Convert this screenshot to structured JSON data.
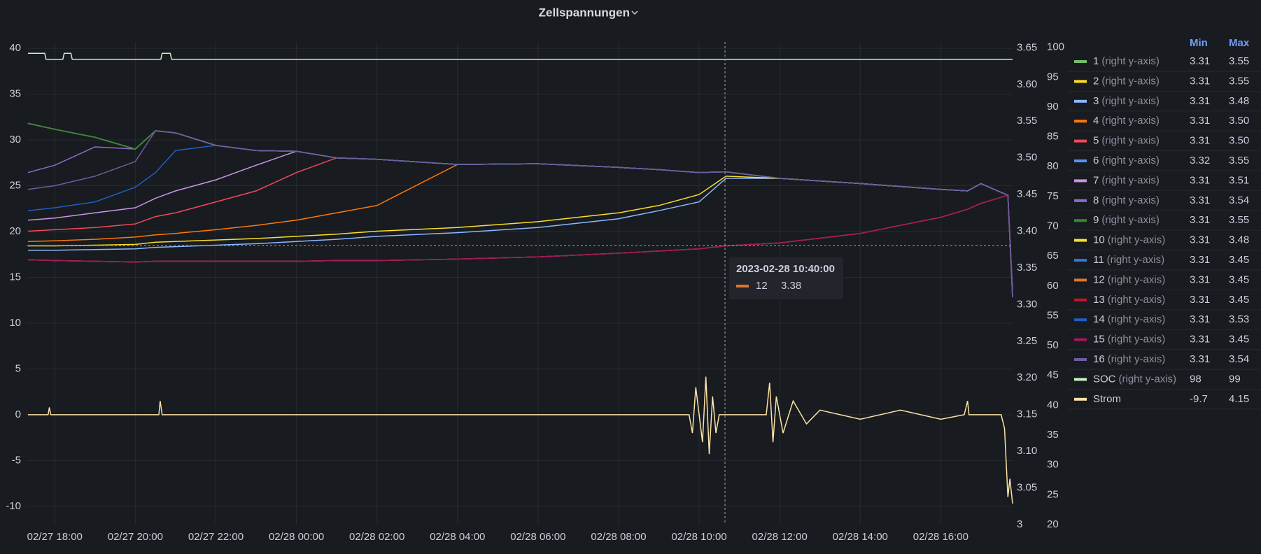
{
  "chart_data": {
    "type": "line",
    "title": "Zellspannungen",
    "right_axis_note": "(right y-axis)",
    "legend_columns": [
      "Min",
      "Max"
    ],
    "x": [
      "02/27 17:20",
      "02/27 18:00",
      "02/27 19:00",
      "02/27 20:00",
      "02/27 20:30",
      "02/27 21:00",
      "02/27 22:00",
      "02/27 23:00",
      "02/28 00:00",
      "02/28 01:00",
      "02/28 02:00",
      "02/28 04:00",
      "02/28 06:00",
      "02/28 08:00",
      "02/28 09:00",
      "02/28 10:00",
      "02/28 10:40",
      "02/28 12:00",
      "02/28 14:00",
      "02/28 16:00",
      "02/28 16:40",
      "02/28 17:00",
      "02/28 17:40",
      "02/28 17:47"
    ],
    "xlim": [
      "02/27 17:18",
      "02/28 17:47"
    ],
    "xticks": [
      "02/27 18:00",
      "02/27 20:00",
      "02/27 22:00",
      "02/28 00:00",
      "02/28 02:00",
      "02/28 04:00",
      "02/28 06:00",
      "02/28 08:00",
      "02/28 10:00",
      "02/28 12:00",
      "02/28 14:00",
      "02/28 16:00"
    ],
    "ylim": [
      -12,
      40.7
    ],
    "yticks": [
      40,
      35,
      30,
      25,
      20,
      15,
      10,
      5,
      0,
      -5,
      -10
    ],
    "y2lim": [
      3,
      3.658
    ],
    "y2ticks": [
      {
        "value": 3.65,
        "label": "3.65"
      },
      {
        "value": 3.6,
        "label": "3.60"
      },
      3.55,
      {
        "value": 3.5,
        "label": "3.50"
      },
      3.45,
      {
        "value": 3.4,
        "label": "3.40"
      },
      3.35,
      {
        "value": 3.3,
        "label": "3.30"
      },
      3.25,
      {
        "value": 3.2,
        "label": "3.20"
      },
      3.15,
      {
        "value": 3.1,
        "label": "3.10"
      },
      3.05,
      3
    ],
    "y3lim": [
      20,
      100.9
    ],
    "y3ticks": [
      100,
      95,
      90,
      85,
      80,
      75,
      70,
      65,
      60,
      55,
      50,
      45,
      40,
      35,
      30,
      25,
      20
    ],
    "grid": true,
    "series": [
      {
        "name": "1",
        "color": "#73bf69",
        "axis": "y2",
        "min": "3.31",
        "max": "3.55",
        "values": [
          3.547,
          3.539,
          3.528,
          3.512,
          3.537,
          3.534,
          3.517,
          3.51,
          3.509,
          3.5,
          3.498,
          3.491,
          3.492,
          3.487,
          3.484,
          3.48,
          3.481,
          3.472,
          3.465,
          3.457,
          3.455,
          3.465,
          3.449,
          3.31
        ]
      },
      {
        "name": "2",
        "color": "#fade2a",
        "axis": "y2",
        "min": "3.31",
        "max": "3.55",
        "values": [
          3.547,
          3.539,
          3.528,
          3.512,
          3.537,
          3.534,
          3.517,
          3.51,
          3.509,
          3.5,
          3.498,
          3.491,
          3.492,
          3.487,
          3.484,
          3.48,
          3.481,
          3.472,
          3.465,
          3.457,
          3.455,
          3.465,
          3.449,
          3.31
        ]
      },
      {
        "name": "3",
        "color": "#8ab8ff",
        "axis": "y2",
        "min": "3.31",
        "max": "3.48",
        "values": [
          3.374,
          3.374,
          3.375,
          3.376,
          3.378,
          3.379,
          3.381,
          3.383,
          3.386,
          3.389,
          3.393,
          3.398,
          3.405,
          3.417,
          3.428,
          3.44,
          3.472,
          3.472,
          3.465,
          3.457,
          3.455,
          3.465,
          3.449,
          3.31
        ]
      },
      {
        "name": "4",
        "color": "#ff780a",
        "axis": "y2",
        "min": "3.31",
        "max": "3.50",
        "values": [
          3.386,
          3.387,
          3.389,
          3.392,
          3.395,
          3.397,
          3.402,
          3.408,
          3.415,
          3.425,
          3.435,
          3.491,
          3.492,
          3.487,
          3.484,
          3.48,
          3.481,
          3.472,
          3.465,
          3.457,
          3.455,
          3.465,
          3.449,
          3.31
        ]
      },
      {
        "name": "5",
        "color": "#f2495c",
        "axis": "y2",
        "min": "3.31",
        "max": "3.50",
        "values": [
          3.4,
          3.402,
          3.405,
          3.41,
          3.42,
          3.425,
          3.44,
          3.455,
          3.48,
          3.5,
          3.498,
          3.491,
          3.492,
          3.487,
          3.484,
          3.48,
          3.481,
          3.472,
          3.465,
          3.457,
          3.455,
          3.465,
          3.449,
          3.31
        ]
      },
      {
        "name": "6",
        "color": "#5794f2",
        "axis": "y2",
        "min": "3.32",
        "max": "3.55",
        "values": [
          3.547,
          3.539,
          3.528,
          3.512,
          3.537,
          3.534,
          3.517,
          3.51,
          3.509,
          3.5,
          3.498,
          3.491,
          3.492,
          3.487,
          3.484,
          3.48,
          3.481,
          3.472,
          3.465,
          3.457,
          3.455,
          3.465,
          3.449,
          3.32
        ]
      },
      {
        "name": "7",
        "color": "#ca95e5",
        "axis": "y2",
        "min": "3.31",
        "max": "3.51",
        "values": [
          3.415,
          3.418,
          3.425,
          3.432,
          3.445,
          3.455,
          3.47,
          3.49,
          3.509,
          3.5,
          3.498,
          3.491,
          3.492,
          3.487,
          3.484,
          3.48,
          3.481,
          3.472,
          3.465,
          3.457,
          3.455,
          3.465,
          3.449,
          3.31
        ]
      },
      {
        "name": "8",
        "color": "#8f6cd0",
        "axis": "y2",
        "min": "3.31",
        "max": "3.54",
        "values": [
          3.48,
          3.49,
          3.515,
          3.512,
          3.537,
          3.534,
          3.517,
          3.51,
          3.509,
          3.5,
          3.498,
          3.491,
          3.492,
          3.487,
          3.484,
          3.48,
          3.481,
          3.472,
          3.465,
          3.457,
          3.455,
          3.465,
          3.449,
          3.31
        ]
      },
      {
        "name": "9",
        "color": "#37872d",
        "axis": "y2",
        "min": "3.31",
        "max": "3.55",
        "values": [
          3.547,
          3.539,
          3.528,
          3.512,
          3.537,
          3.534,
          3.517,
          3.51,
          3.509,
          3.5,
          3.498,
          3.491,
          3.492,
          3.487,
          3.484,
          3.48,
          3.481,
          3.472,
          3.465,
          3.457,
          3.455,
          3.465,
          3.449,
          3.31
        ]
      },
      {
        "name": "10",
        "color": "#fade2a",
        "axis": "y2",
        "min": "3.31",
        "max": "3.48",
        "values": [
          3.38,
          3.38,
          3.381,
          3.382,
          3.385,
          3.386,
          3.388,
          3.39,
          3.393,
          3.396,
          3.4,
          3.405,
          3.413,
          3.425,
          3.435,
          3.45,
          3.475,
          3.472,
          3.465,
          3.457,
          3.455,
          3.465,
          3.449,
          3.31
        ]
      },
      {
        "name": "11",
        "color": "#3274d9",
        "axis": "y2",
        "min": "3.31",
        "max": "3.45",
        "values": [
          3.361,
          3.36,
          3.359,
          3.358,
          3.359,
          3.359,
          3.359,
          3.359,
          3.359,
          3.36,
          3.36,
          3.362,
          3.365,
          3.37,
          3.373,
          3.376,
          3.38,
          3.384,
          3.397,
          3.419,
          3.43,
          3.438,
          3.449,
          3.31
        ]
      },
      {
        "name": "12",
        "color": "#e0752d",
        "axis": "y2",
        "min": "3.31",
        "max": "3.45",
        "values": [
          3.361,
          3.36,
          3.359,
          3.358,
          3.359,
          3.359,
          3.359,
          3.359,
          3.359,
          3.36,
          3.36,
          3.362,
          3.365,
          3.37,
          3.373,
          3.376,
          3.38,
          3.384,
          3.397,
          3.419,
          3.43,
          3.438,
          3.449,
          3.31
        ]
      },
      {
        "name": "13",
        "color": "#c4162a",
        "axis": "y2",
        "min": "3.31",
        "max": "3.45",
        "values": [
          3.361,
          3.36,
          3.359,
          3.358,
          3.359,
          3.359,
          3.359,
          3.359,
          3.359,
          3.36,
          3.36,
          3.362,
          3.365,
          3.37,
          3.373,
          3.376,
          3.38,
          3.384,
          3.397,
          3.419,
          3.43,
          3.438,
          3.449,
          3.31
        ]
      },
      {
        "name": "14",
        "color": "#1f60c4",
        "axis": "y2",
        "min": "3.31",
        "max": "3.53",
        "values": [
          3.428,
          3.432,
          3.44,
          3.46,
          3.48,
          3.51,
          3.517,
          3.51,
          3.509,
          3.5,
          3.498,
          3.491,
          3.492,
          3.487,
          3.484,
          3.48,
          3.481,
          3.472,
          3.465,
          3.457,
          3.455,
          3.465,
          3.449,
          3.31
        ]
      },
      {
        "name": "15",
        "color": "#a3195b",
        "axis": "y2",
        "min": "3.31",
        "max": "3.45",
        "values": [
          3.361,
          3.36,
          3.359,
          3.358,
          3.359,
          3.359,
          3.359,
          3.359,
          3.359,
          3.36,
          3.36,
          3.362,
          3.365,
          3.37,
          3.373,
          3.376,
          3.38,
          3.384,
          3.397,
          3.419,
          3.43,
          3.438,
          3.449,
          3.31
        ]
      },
      {
        "name": "16",
        "color": "#705da0",
        "axis": "y2",
        "min": "3.31",
        "max": "3.54",
        "values": [
          3.457,
          3.462,
          3.475,
          3.495,
          3.537,
          3.534,
          3.517,
          3.51,
          3.509,
          3.5,
          3.498,
          3.491,
          3.492,
          3.487,
          3.484,
          3.48,
          3.481,
          3.472,
          3.465,
          3.457,
          3.455,
          3.465,
          3.449,
          3.31
        ]
      },
      {
        "name": "SOC",
        "color": "#c8f2c2",
        "axis": "y3",
        "min": "98",
        "max": "99",
        "x": [
          "02/27 17:20",
          "02/27 17:45",
          "02/27 17:47",
          "02/27 18:12",
          "02/27 18:14",
          "02/27 18:24",
          "02/27 18:26",
          "02/27 20:38",
          "02/27 20:40",
          "02/27 20:52",
          "02/27 20:54",
          "02/28 17:47"
        ],
        "values": [
          99,
          99,
          98,
          98,
          99,
          99,
          98,
          98,
          99,
          99,
          98,
          98
        ]
      },
      {
        "name": "Strom",
        "color": "#fce2a5",
        "axis": "y",
        "min": "-9.7",
        "max": "4.15",
        "x": [
          "02/27 17:20",
          "02/27 17:50",
          "02/27 17:52",
          "02/27 17:54",
          "02/27 20:35",
          "02/27 20:37",
          "02/27 20:40",
          "02/28 09:45",
          "02/28 09:50",
          "02/28 09:55",
          "02/28 10:05",
          "02/28 10:10",
          "02/28 10:15",
          "02/28 10:20",
          "02/28 10:25",
          "02/28 10:30",
          "02/28 11:40",
          "02/28 11:45",
          "02/28 11:50",
          "02/28 11:55",
          "02/28 12:05",
          "02/28 12:20",
          "02/28 12:40",
          "02/28 13:00",
          "02/28 14:00",
          "02/28 15:00",
          "02/28 16:00",
          "02/28 16:35",
          "02/28 16:40",
          "02/28 16:42",
          "02/28 17:30",
          "02/28 17:35",
          "02/28 17:40",
          "02/28 17:43",
          "02/28 17:47"
        ],
        "values": [
          0,
          0,
          0.8,
          0,
          0,
          1.5,
          0,
          0,
          -2,
          3,
          -3,
          4.15,
          -4.3,
          2,
          -2,
          0,
          0,
          3.5,
          -3,
          2,
          -2,
          1.5,
          -1,
          0.5,
          -0.5,
          0.5,
          -0.5,
          0,
          1.5,
          0,
          0,
          -1.5,
          -9,
          -7,
          -9.7
        ]
      }
    ],
    "tooltip": {
      "time": "2023-02-28 10:40:00",
      "series": "12",
      "value": 3.38,
      "color": "#e0752d"
    }
  }
}
